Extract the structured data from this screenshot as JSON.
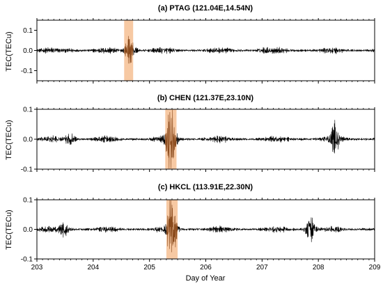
{
  "chart_data": [
    {
      "type": "line",
      "title": "(a) PTAG (121.04E,14.54N)",
      "ylabel": "TEC(TECu)",
      "xlim": [
        203,
        209
      ],
      "ylim": [
        -0.15,
        0.15
      ],
      "yticks": [
        -0.1,
        0.0,
        0.1
      ],
      "ytick_labels": [
        "-0.1",
        "0.0",
        "0.1"
      ],
      "highlight": {
        "x_start": 204.55,
        "x_end": 204.71,
        "color": "#f7c9a3"
      },
      "series": [
        {
          "color": "#000000",
          "highlight_color": "#8a4a1c",
          "description_points": [
            {
              "x": 203.0,
              "y": 0.0
            },
            {
              "x": 203.6,
              "y": 0.02
            },
            {
              "x": 204.65,
              "y": 0.11
            },
            {
              "x": 204.67,
              "y": -0.08
            },
            {
              "x": 207.0,
              "y": 0.02
            },
            {
              "x": 209.0,
              "y": 0.0
            }
          ]
        }
      ]
    },
    {
      "type": "line",
      "title": "(b) CHEN (121.37E,23.10N)",
      "ylabel": "TEC(TECu)",
      "xlim": [
        203,
        209
      ],
      "ylim": [
        -0.1,
        0.1
      ],
      "yticks": [
        -0.1,
        0.0,
        0.1
      ],
      "ytick_labels": [
        "-0.1",
        "0.0",
        "0.1"
      ],
      "highlight": {
        "x_start": 205.28,
        "x_end": 205.48,
        "color": "#f7c9a3"
      },
      "series": [
        {
          "color": "#000000",
          "highlight_color": "#8a4a1c",
          "description_points": [
            {
              "x": 203.0,
              "y": 0.0
            },
            {
              "x": 203.6,
              "y": 0.06
            },
            {
              "x": 205.38,
              "y": 0.085
            },
            {
              "x": 205.4,
              "y": -0.08
            },
            {
              "x": 208.3,
              "y": 0.05
            },
            {
              "x": 209.0,
              "y": 0.0
            }
          ]
        }
      ]
    },
    {
      "type": "line",
      "title": "(c) HKCL (113.91E,22.30N)",
      "ylabel": "TEC(TECu)",
      "xlabel": "Day of Year",
      "xlim": [
        203,
        209
      ],
      "ylim": [
        -0.1,
        0.1
      ],
      "yticks": [
        -0.1,
        0.0,
        0.1
      ],
      "ytick_labels": [
        "-0.1",
        "0.0",
        "0.1"
      ],
      "xticks": [
        203,
        204,
        205,
        206,
        207,
        208,
        209
      ],
      "xtick_labels": [
        "203",
        "204",
        "205",
        "206",
        "207",
        "208",
        "209"
      ],
      "highlight": {
        "x_start": 205.3,
        "x_end": 205.5,
        "color": "#f7c9a3"
      },
      "series": [
        {
          "color": "#000000",
          "highlight_color": "#8a4a1c",
          "description_points": [
            {
              "x": 203.0,
              "y": 0.0
            },
            {
              "x": 203.5,
              "y": 0.05
            },
            {
              "x": 205.4,
              "y": 0.09
            },
            {
              "x": 205.42,
              "y": -0.07
            },
            {
              "x": 207.85,
              "y": 0.085
            },
            {
              "x": 207.86,
              "y": -0.065
            },
            {
              "x": 209.0,
              "y": 0.0
            }
          ]
        }
      ]
    }
  ]
}
